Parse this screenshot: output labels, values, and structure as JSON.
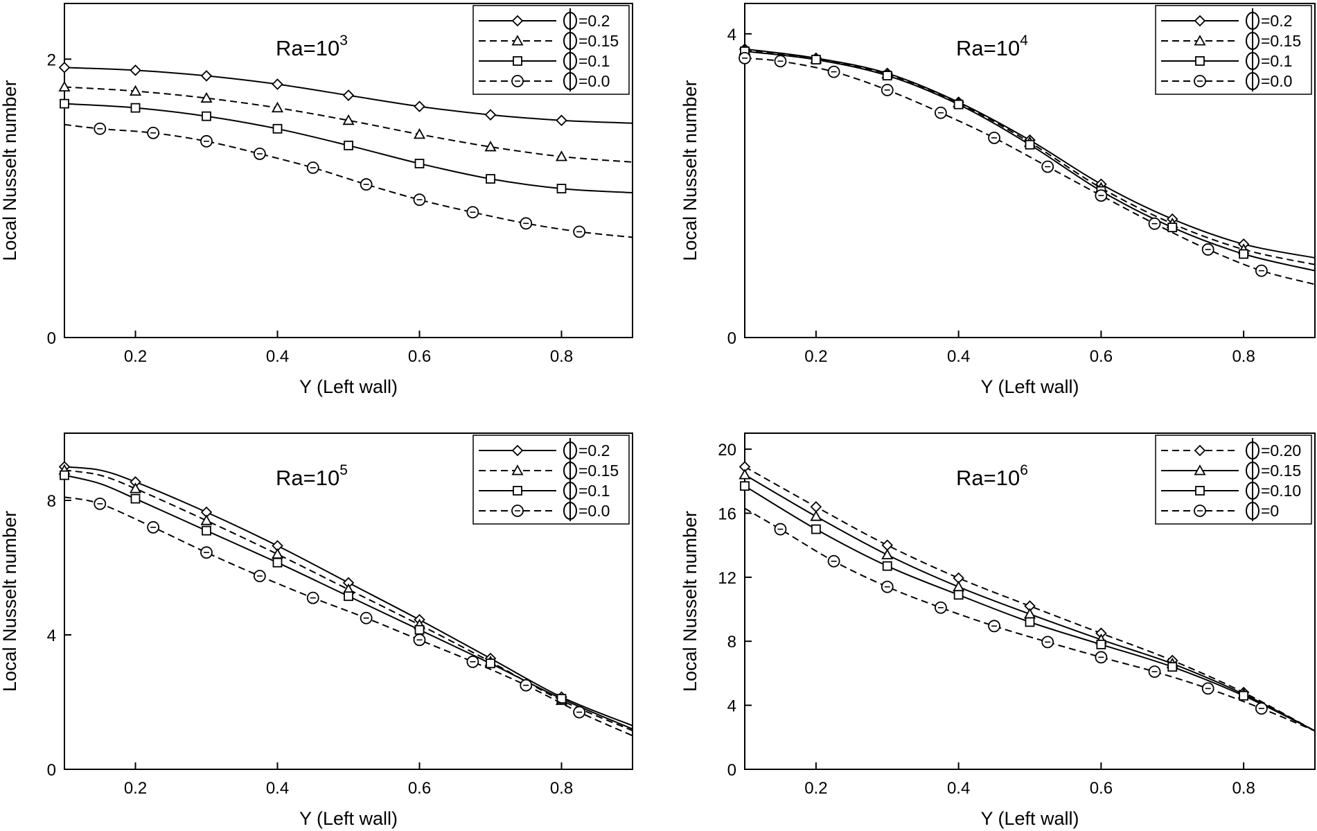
{
  "chart_data": [
    {
      "type": "line",
      "title": "Ra=10^3",
      "title_base": "Ra=10",
      "title_exp": "3",
      "xlabel": "Y (Left wall)",
      "ylabel": "Local Nusselt number",
      "xlim": [
        0.1,
        0.9
      ],
      "ylim": [
        0,
        2.4
      ],
      "xticks": [
        0.2,
        0.4,
        0.6,
        0.8
      ],
      "xtick_labels": [
        "0.2",
        "0.4",
        "0.6",
        "0.8"
      ],
      "yticks": [
        0,
        2
      ],
      "ytick_labels": [
        "0",
        "2"
      ],
      "legend_position": "top-right",
      "series": [
        {
          "name": "Φ=0.2",
          "legend_label": "=0.2",
          "marker": "diamond",
          "dash": "solid",
          "x": [
            0.1,
            0.2,
            0.3,
            0.4,
            0.5,
            0.6,
            0.7,
            0.8,
            0.9
          ],
          "y": [
            1.94,
            1.92,
            1.88,
            1.82,
            1.74,
            1.66,
            1.6,
            1.56,
            1.54
          ],
          "mx": [
            0.1,
            0.2,
            0.3,
            0.4,
            0.5,
            0.6,
            0.7,
            0.8
          ]
        },
        {
          "name": "Φ=0.15",
          "legend_label": "=0.15",
          "marker": "triangle",
          "dash": "dashed",
          "x": [
            0.1,
            0.2,
            0.3,
            0.4,
            0.5,
            0.6,
            0.7,
            0.8,
            0.9
          ],
          "y": [
            1.8,
            1.77,
            1.72,
            1.65,
            1.56,
            1.46,
            1.37,
            1.3,
            1.26
          ],
          "mx": [
            0.1,
            0.2,
            0.3,
            0.4,
            0.5,
            0.6,
            0.7,
            0.8
          ]
        },
        {
          "name": "Φ=0.1",
          "legend_label": "=0.1",
          "marker": "square",
          "dash": "solid",
          "x": [
            0.1,
            0.2,
            0.3,
            0.4,
            0.5,
            0.6,
            0.7,
            0.8,
            0.9
          ],
          "y": [
            1.68,
            1.65,
            1.59,
            1.5,
            1.38,
            1.25,
            1.14,
            1.07,
            1.04
          ],
          "mx": [
            0.1,
            0.2,
            0.3,
            0.4,
            0.5,
            0.6,
            0.7,
            0.8
          ]
        },
        {
          "name": "Φ=0.0",
          "legend_label": "=0.0",
          "marker": "circle",
          "dash": "dashed",
          "x": [
            0.1,
            0.15,
            0.225,
            0.3,
            0.375,
            0.45,
            0.525,
            0.6,
            0.675,
            0.75,
            0.825,
            0.9
          ],
          "y": [
            1.53,
            1.5,
            1.47,
            1.41,
            1.32,
            1.22,
            1.1,
            0.99,
            0.9,
            0.82,
            0.76,
            0.72
          ],
          "mx": [
            0.15,
            0.225,
            0.3,
            0.375,
            0.45,
            0.525,
            0.6,
            0.675,
            0.75,
            0.825
          ]
        }
      ]
    },
    {
      "type": "line",
      "title": "Ra=10^4",
      "title_base": "Ra=10",
      "title_exp": "4",
      "xlabel": "Y (Left wall)",
      "ylabel": "Local Nusselt number",
      "xlim": [
        0.1,
        0.9
      ],
      "ylim": [
        0,
        4.4
      ],
      "xticks": [
        0.2,
        0.4,
        0.6,
        0.8
      ],
      "xtick_labels": [
        "0.2",
        "0.4",
        "0.6",
        "0.8"
      ],
      "yticks": [
        0,
        4
      ],
      "ytick_labels": [
        "0",
        "4"
      ],
      "legend_position": "top-right",
      "series": [
        {
          "name": "Φ=0.2",
          "legend_label": "=0.2",
          "marker": "diamond",
          "dash": "solid",
          "x": [
            0.1,
            0.2,
            0.3,
            0.4,
            0.5,
            0.6,
            0.7,
            0.8,
            0.9
          ],
          "y": [
            3.8,
            3.68,
            3.48,
            3.1,
            2.6,
            2.02,
            1.56,
            1.23,
            1.05
          ],
          "mx": [
            0.1,
            0.2,
            0.3,
            0.4,
            0.5,
            0.6,
            0.7,
            0.8
          ]
        },
        {
          "name": "Φ=0.15",
          "legend_label": "=0.15",
          "marker": "triangle",
          "dash": "dashed",
          "x": [
            0.1,
            0.2,
            0.3,
            0.4,
            0.5,
            0.6,
            0.7,
            0.8,
            0.9
          ],
          "y": [
            3.78,
            3.67,
            3.47,
            3.09,
            2.57,
            1.97,
            1.5,
            1.16,
            0.96
          ],
          "mx": [
            0.1,
            0.2,
            0.3,
            0.4,
            0.5,
            0.6,
            0.7,
            0.8
          ]
        },
        {
          "name": "Φ=0.1",
          "legend_label": "=0.1",
          "marker": "square",
          "dash": "solid",
          "x": [
            0.1,
            0.2,
            0.3,
            0.4,
            0.5,
            0.6,
            0.7,
            0.8,
            0.9
          ],
          "y": [
            3.77,
            3.66,
            3.45,
            3.07,
            2.54,
            1.93,
            1.45,
            1.1,
            0.88
          ],
          "mx": [
            0.1,
            0.2,
            0.3,
            0.4,
            0.5,
            0.6,
            0.7,
            0.8
          ]
        },
        {
          "name": "Φ=0.0",
          "legend_label": "=0.0",
          "marker": "circle",
          "dash": "dashed",
          "x": [
            0.1,
            0.15,
            0.225,
            0.3,
            0.375,
            0.45,
            0.525,
            0.6,
            0.675,
            0.75,
            0.825,
            0.9
          ],
          "y": [
            3.68,
            3.64,
            3.5,
            3.26,
            2.96,
            2.63,
            2.25,
            1.87,
            1.5,
            1.16,
            0.88,
            0.7
          ],
          "mx": [
            0.1,
            0.15,
            0.225,
            0.3,
            0.375,
            0.45,
            0.525,
            0.6,
            0.675,
            0.75,
            0.825
          ]
        }
      ]
    },
    {
      "type": "line",
      "title": "Ra=10^5",
      "title_base": "Ra=10",
      "title_exp": "5",
      "xlabel": "Y (Left wall)",
      "ylabel": "Local Nusselt number",
      "xlim": [
        0.1,
        0.9
      ],
      "ylim": [
        0,
        10
      ],
      "xticks": [
        0.2,
        0.4,
        0.6,
        0.8
      ],
      "xtick_labels": [
        "0.2",
        "0.4",
        "0.6",
        "0.8"
      ],
      "yticks": [
        0,
        4,
        8
      ],
      "ytick_labels": [
        "0",
        "4",
        "8"
      ],
      "legend_position": "top-right",
      "series": [
        {
          "name": "Φ=0.2",
          "legend_label": "=0.2",
          "marker": "diamond",
          "dash": "solid",
          "x": [
            0.1,
            0.15,
            0.2,
            0.3,
            0.4,
            0.5,
            0.6,
            0.7,
            0.8,
            0.9
          ],
          "y": [
            9.0,
            8.9,
            8.55,
            7.65,
            6.65,
            5.55,
            4.45,
            3.3,
            2.15,
            1.3
          ],
          "mx": [
            0.1,
            0.2,
            0.3,
            0.4,
            0.5,
            0.6,
            0.7,
            0.8
          ]
        },
        {
          "name": "Φ=0.15",
          "legend_label": "=0.15",
          "marker": "triangle",
          "dash": "dashed",
          "x": [
            0.1,
            0.15,
            0.2,
            0.3,
            0.4,
            0.5,
            0.6,
            0.7,
            0.8,
            0.9
          ],
          "y": [
            8.9,
            8.75,
            8.35,
            7.4,
            6.4,
            5.35,
            4.3,
            3.2,
            2.05,
            1.15
          ],
          "mx": [
            0.1,
            0.2,
            0.3,
            0.4,
            0.5,
            0.6,
            0.7,
            0.8
          ]
        },
        {
          "name": "Φ=0.1",
          "legend_label": "=0.1",
          "marker": "square",
          "dash": "solid",
          "x": [
            0.1,
            0.15,
            0.2,
            0.3,
            0.4,
            0.5,
            0.6,
            0.7,
            0.8,
            0.9
          ],
          "y": [
            8.75,
            8.5,
            8.05,
            7.1,
            6.15,
            5.15,
            4.15,
            3.15,
            2.1,
            1.2
          ],
          "mx": [
            0.1,
            0.2,
            0.3,
            0.4,
            0.5,
            0.6,
            0.7,
            0.8
          ]
        },
        {
          "name": "Φ=0.0",
          "legend_label": "=0.0",
          "marker": "circle",
          "dash": "dashed",
          "x": [
            0.1,
            0.15,
            0.225,
            0.3,
            0.375,
            0.45,
            0.525,
            0.6,
            0.675,
            0.75,
            0.825,
            0.9
          ],
          "y": [
            8.1,
            7.9,
            7.2,
            6.45,
            5.75,
            5.1,
            4.5,
            3.85,
            3.2,
            2.5,
            1.7,
            1.0
          ],
          "mx": [
            0.15,
            0.225,
            0.3,
            0.375,
            0.45,
            0.525,
            0.6,
            0.675,
            0.75,
            0.825
          ]
        }
      ]
    },
    {
      "type": "line",
      "title": "Ra=10^6",
      "title_base": "Ra=10",
      "title_exp": "6",
      "xlabel": "Y (Left wall)",
      "ylabel": "Local Nusselt number",
      "xlim": [
        0.1,
        0.9
      ],
      "ylim": [
        0,
        21
      ],
      "xticks": [
        0.2,
        0.4,
        0.6,
        0.8
      ],
      "xtick_labels": [
        "0.2",
        "0.4",
        "0.6",
        "0.8"
      ],
      "yticks": [
        0,
        4,
        8,
        12,
        16,
        20
      ],
      "ytick_labels": [
        "0",
        "4",
        "8",
        "12",
        "16",
        "20"
      ],
      "legend_position": "top-right",
      "series": [
        {
          "name": "Φ=0.20",
          "legend_label": "=0.20",
          "marker": "diamond",
          "dash": "dashed",
          "x": [
            0.1,
            0.2,
            0.3,
            0.4,
            0.5,
            0.6,
            0.7,
            0.8,
            0.9
          ],
          "y": [
            18.9,
            16.4,
            14.0,
            11.95,
            10.2,
            8.5,
            6.8,
            4.8,
            2.4
          ],
          "mx": [
            0.1,
            0.2,
            0.3,
            0.4,
            0.5,
            0.6,
            0.7,
            0.8
          ]
        },
        {
          "name": "Φ=0.15",
          "legend_label": "=0.15",
          "marker": "triangle",
          "dash": "solid",
          "x": [
            0.1,
            0.2,
            0.3,
            0.4,
            0.5,
            0.6,
            0.7,
            0.8,
            0.9
          ],
          "y": [
            18.4,
            15.8,
            13.4,
            11.4,
            9.7,
            8.1,
            6.6,
            4.7,
            2.4
          ],
          "mx": [
            0.1,
            0.2,
            0.3,
            0.4,
            0.5,
            0.6,
            0.7,
            0.8
          ]
        },
        {
          "name": "Φ=0.10",
          "legend_label": "=0.10",
          "marker": "square",
          "dash": "solid",
          "x": [
            0.1,
            0.2,
            0.3,
            0.4,
            0.5,
            0.6,
            0.7,
            0.8,
            0.9
          ],
          "y": [
            17.7,
            15.0,
            12.7,
            10.9,
            9.2,
            7.8,
            6.4,
            4.6,
            2.4
          ],
          "mx": [
            0.1,
            0.2,
            0.3,
            0.4,
            0.5,
            0.6,
            0.7,
            0.8
          ]
        },
        {
          "name": "Φ=0",
          "legend_label": "=0",
          "marker": "circle",
          "dash": "dashed",
          "x": [
            0.1,
            0.15,
            0.225,
            0.3,
            0.375,
            0.45,
            0.525,
            0.6,
            0.675,
            0.75,
            0.825,
            0.9
          ],
          "y": [
            16.3,
            15.0,
            13.0,
            11.4,
            10.1,
            8.95,
            7.95,
            7.0,
            6.1,
            5.05,
            3.8,
            2.4
          ],
          "mx": [
            0.15,
            0.225,
            0.3,
            0.375,
            0.45,
            0.525,
            0.6,
            0.675,
            0.75,
            0.825
          ]
        }
      ]
    }
  ]
}
